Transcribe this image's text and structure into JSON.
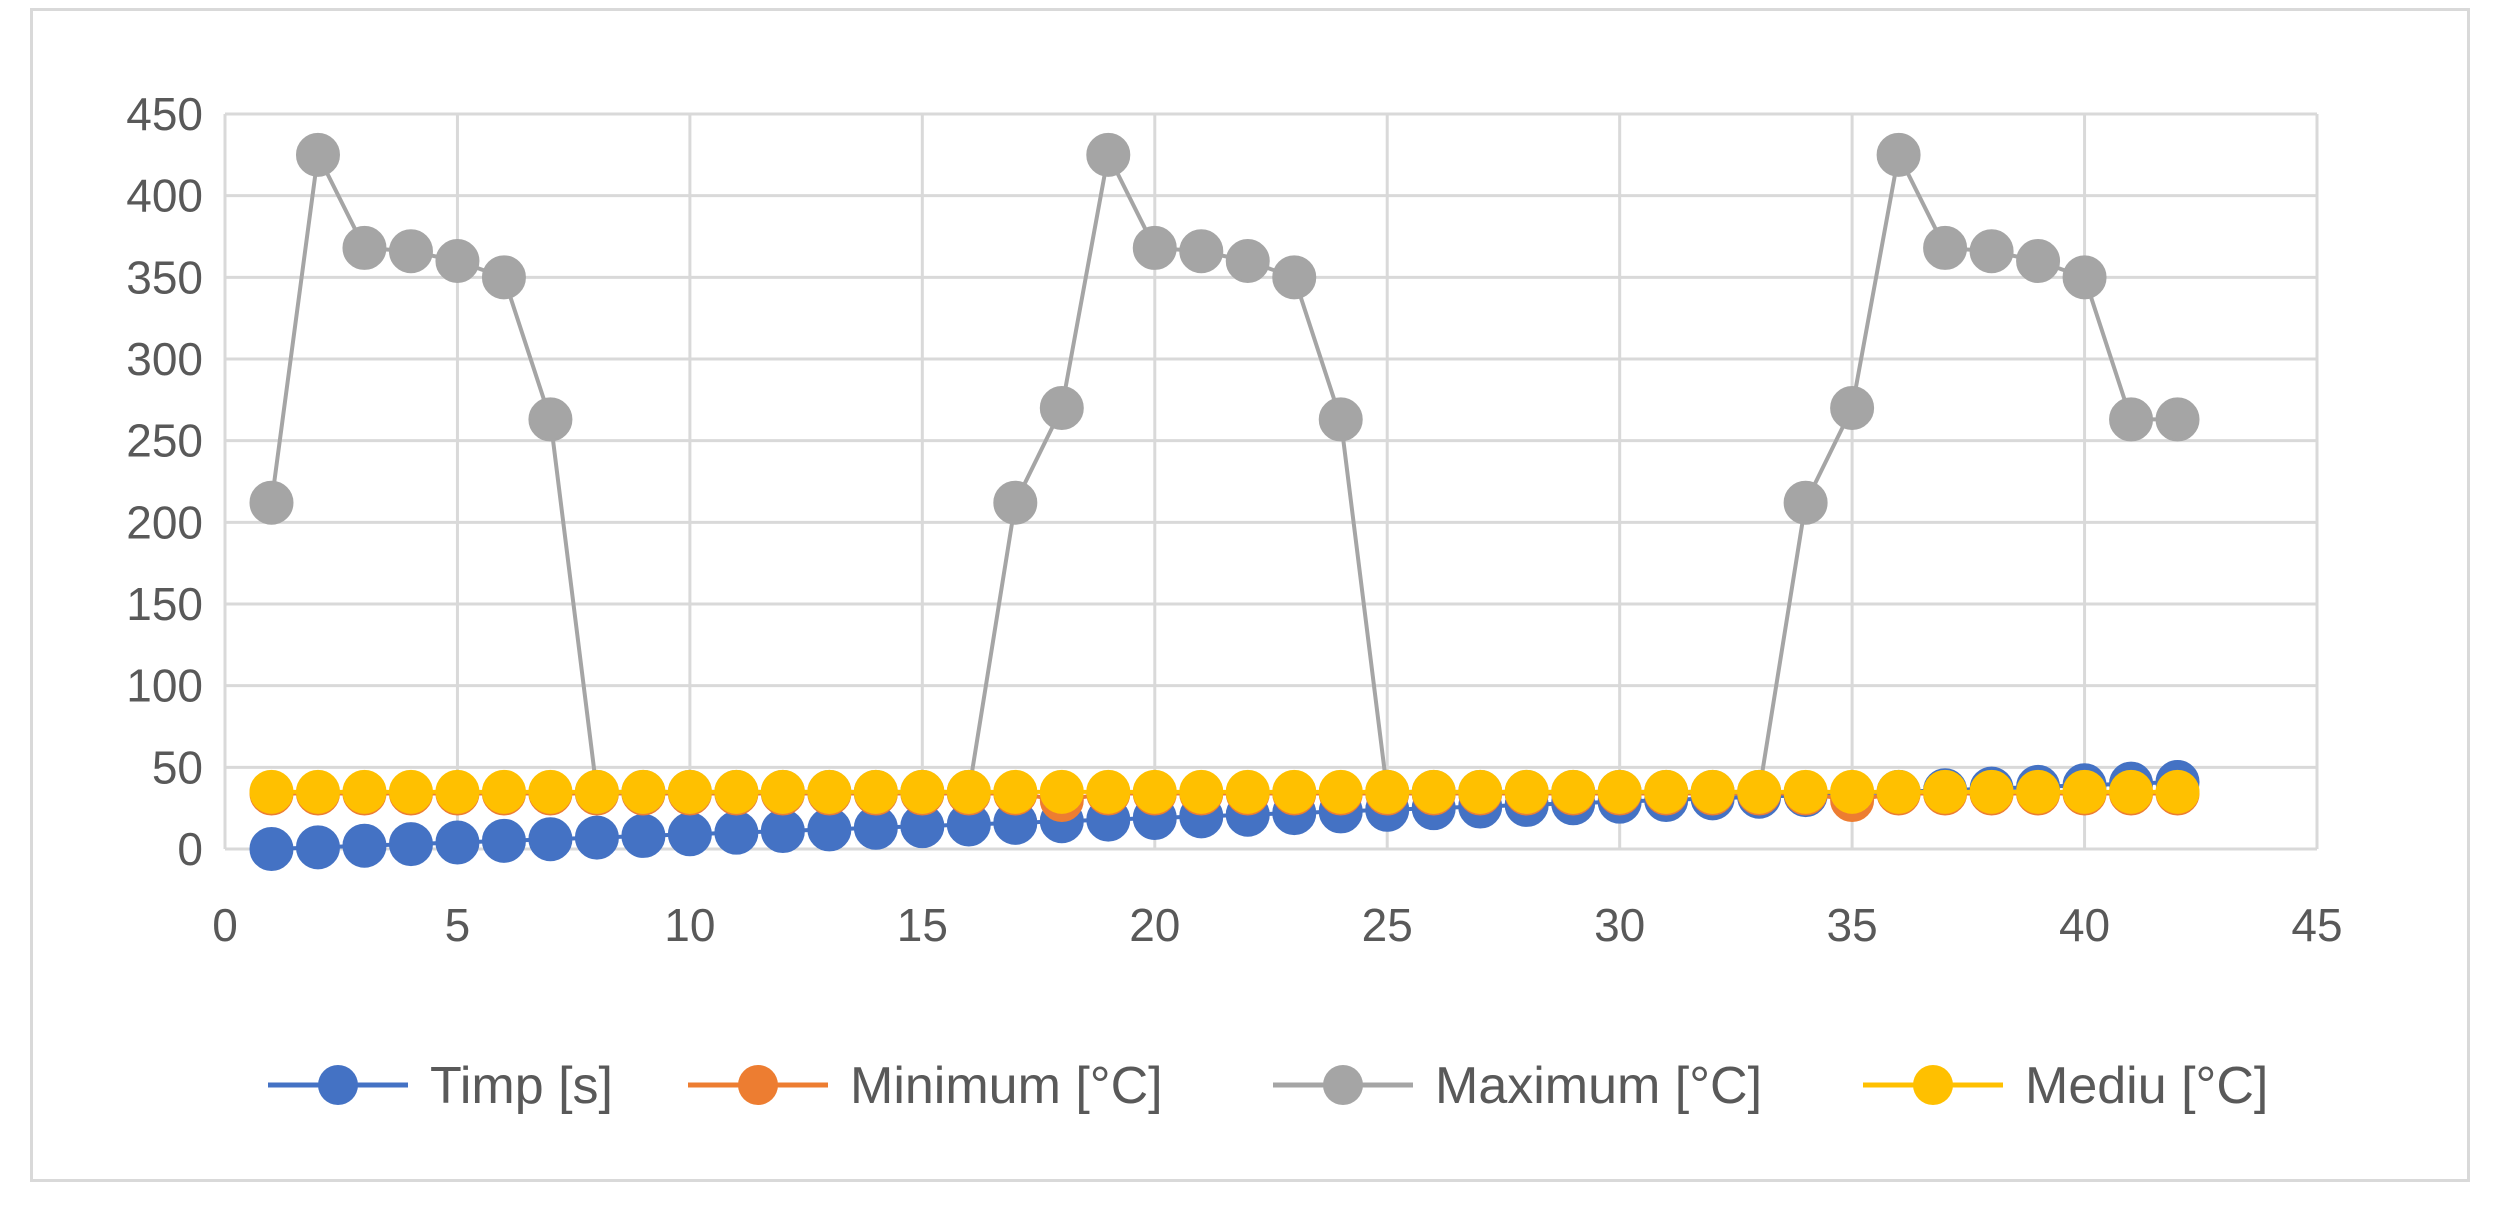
{
  "chart_data": {
    "type": "scatter",
    "title": "",
    "xlabel": "",
    "ylabel": "",
    "xlim": [
      0,
      45
    ],
    "ylim": [
      0,
      450
    ],
    "x_ticks": [
      0,
      5,
      10,
      15,
      20,
      25,
      30,
      35,
      40,
      45
    ],
    "y_ticks": [
      0,
      50,
      100,
      150,
      200,
      250,
      300,
      350,
      400,
      450
    ],
    "grid": true,
    "legend_position": "bottom",
    "x": [
      1,
      2,
      3,
      4,
      5,
      6,
      7,
      8,
      9,
      10,
      11,
      12,
      13,
      14,
      15,
      16,
      17,
      18,
      19,
      20,
      21,
      22,
      23,
      24,
      25,
      26,
      27,
      28,
      29,
      30,
      31,
      32,
      33,
      34,
      35,
      36,
      37,
      38,
      39,
      40,
      41,
      42
    ],
    "series": [
      {
        "name": "Timp [s]",
        "color": "#4472c4",
        "values": [
          0,
          1,
          2,
          3,
          4,
          5,
          6,
          7,
          8,
          9,
          10,
          11,
          12,
          13,
          14,
          15,
          16,
          17,
          18,
          19,
          20,
          21,
          22,
          23,
          24,
          25,
          26,
          27,
          28,
          29,
          30,
          31,
          32,
          33,
          34,
          35,
          36,
          37,
          38,
          39,
          40,
          41
        ]
      },
      {
        "name": "Minimum [°C]",
        "color": "#ed7d31",
        "values": [
          34,
          34,
          34,
          34,
          34,
          34,
          34,
          34,
          34,
          34,
          34,
          34,
          34,
          34,
          34,
          34,
          34,
          30,
          34,
          34,
          34,
          34,
          34,
          34,
          34,
          34,
          34,
          34,
          34,
          34,
          34,
          34,
          34,
          34,
          30,
          34,
          34,
          34,
          34,
          34,
          34,
          34
        ]
      },
      {
        "name": "Maximum [°C]",
        "color": "#a5a5a5",
        "values": [
          212,
          425,
          368,
          366,
          360,
          350,
          263,
          35,
          35,
          35,
          35,
          35,
          35,
          35,
          35,
          35,
          212,
          270,
          425,
          368,
          366,
          360,
          350,
          263,
          35,
          35,
          35,
          35,
          35,
          35,
          35,
          35,
          35,
          212,
          270,
          425,
          368,
          366,
          360,
          350,
          263,
          263
        ]
      },
      {
        "name": "Mediu [°C]",
        "color": "#ffc000",
        "values": [
          35,
          35,
          35,
          35,
          35,
          35,
          35,
          35,
          35,
          35,
          35,
          35,
          35,
          35,
          35,
          35,
          35,
          35,
          35,
          35,
          35,
          35,
          35,
          35,
          35,
          35,
          35,
          35,
          35,
          35,
          35,
          35,
          35,
          35,
          35,
          35,
          35,
          35,
          35,
          35,
          35,
          35
        ]
      }
    ]
  }
}
